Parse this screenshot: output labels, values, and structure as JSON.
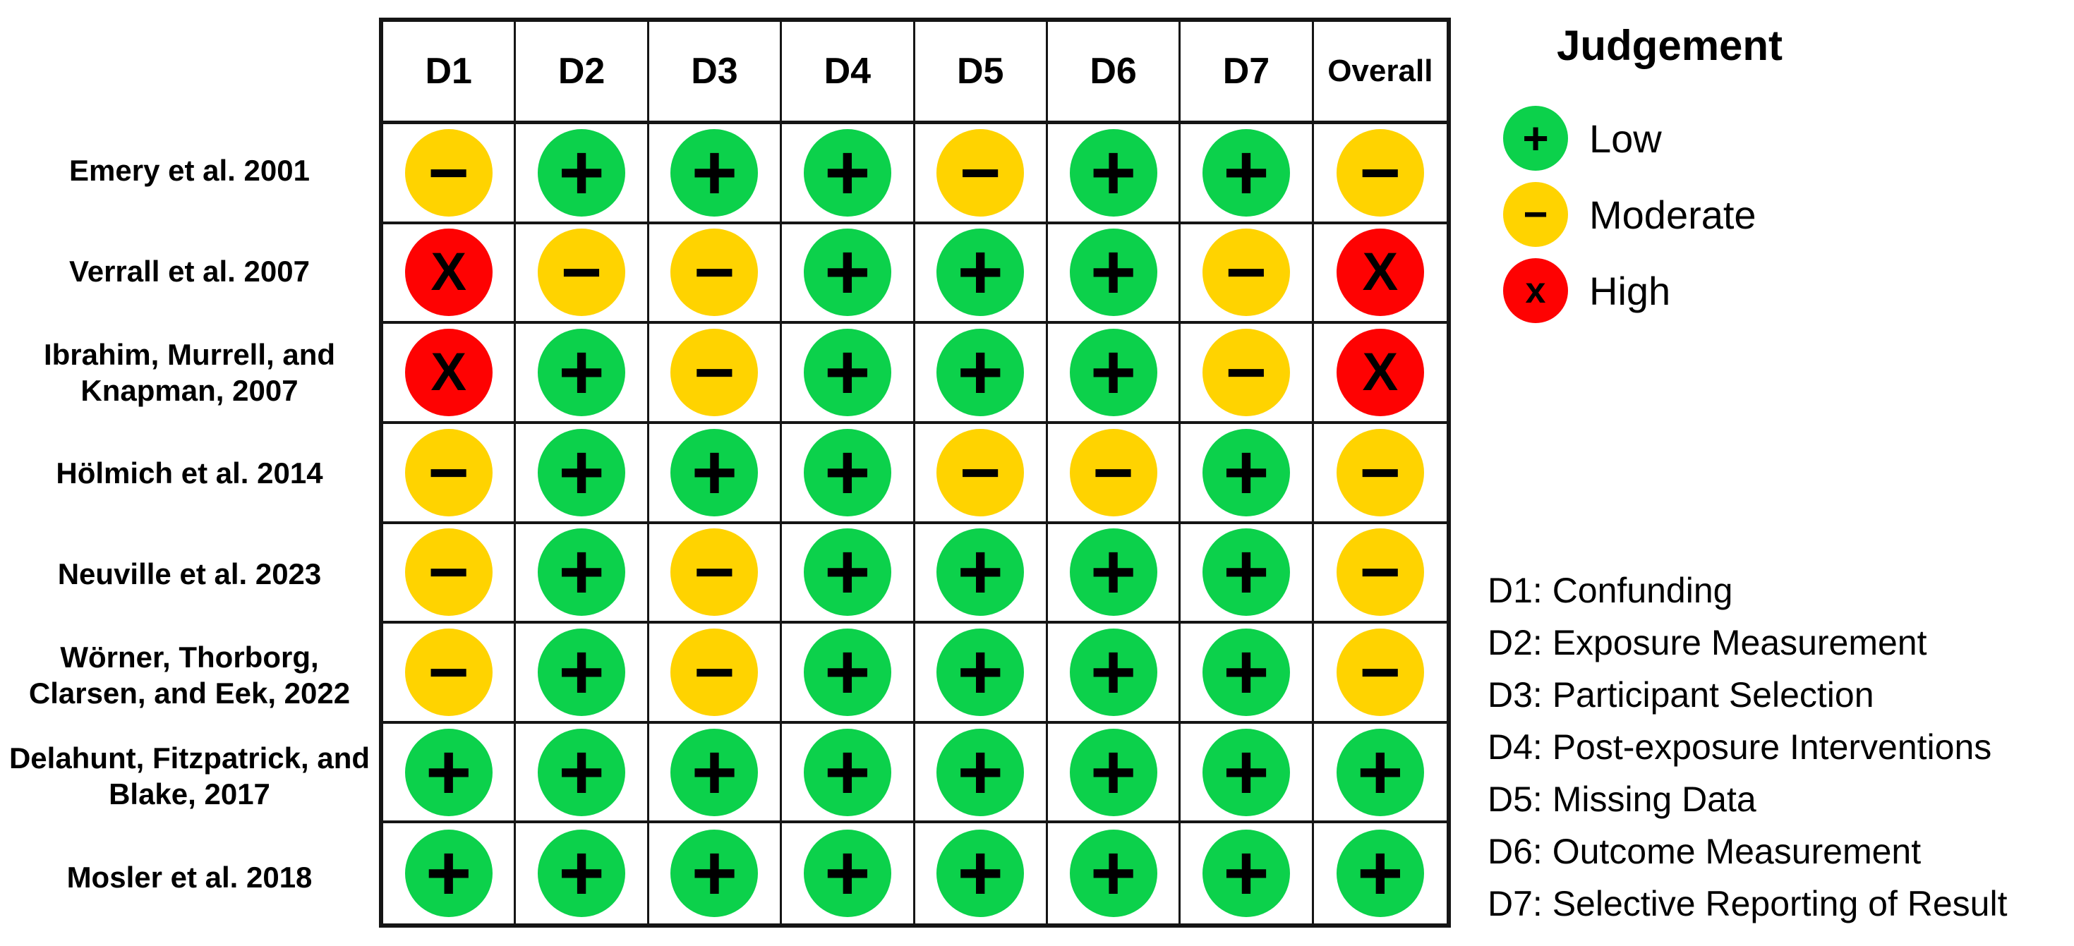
{
  "chart_data": {
    "type": "table",
    "columns": [
      "D1",
      "D2",
      "D3",
      "D4",
      "D5",
      "D6",
      "D7",
      "Overall"
    ],
    "rows": [
      {
        "study": "Emery et al. 2001",
        "judgements": [
          "Moderate",
          "Low",
          "Low",
          "Low",
          "Moderate",
          "Low",
          "Low",
          "Moderate"
        ]
      },
      {
        "study": "Verrall et al. 2007",
        "judgements": [
          "High",
          "Moderate",
          "Moderate",
          "Low",
          "Low",
          "Low",
          "Moderate",
          "High"
        ]
      },
      {
        "study": "Ibrahim, Murrell, and Knapman, 2007",
        "judgements": [
          "High",
          "Low",
          "Moderate",
          "Low",
          "Low",
          "Low",
          "Moderate",
          "High"
        ]
      },
      {
        "study": "Hölmich et al. 2014",
        "judgements": [
          "Moderate",
          "Low",
          "Low",
          "Low",
          "Moderate",
          "Moderate",
          "Low",
          "Moderate"
        ]
      },
      {
        "study": "Neuville et al. 2023",
        "judgements": [
          "Moderate",
          "Low",
          "Moderate",
          "Low",
          "Low",
          "Low",
          "Low",
          "Moderate"
        ]
      },
      {
        "study": "Wörner, Thorborg, Clarsen, and Eek, 2022",
        "judgements": [
          "Moderate",
          "Low",
          "Moderate",
          "Low",
          "Low",
          "Low",
          "Low",
          "Moderate"
        ]
      },
      {
        "study": "Delahunt, Fitzpatrick, and Blake, 2017",
        "judgements": [
          "Low",
          "Low",
          "Low",
          "Low",
          "Low",
          "Low",
          "Low",
          "Low"
        ]
      },
      {
        "study": "Mosler et al. 2018",
        "judgements": [
          "Low",
          "Low",
          "Low",
          "Low",
          "Low",
          "Low",
          "Low",
          "Low"
        ]
      }
    ],
    "legend": {
      "title": "Judgement",
      "entries": [
        {
          "label": "Low",
          "symbol": "+"
        },
        {
          "label": "Moderate",
          "symbol": "−"
        },
        {
          "label": "High",
          "symbol": "x"
        }
      ],
      "symbols": {
        "Low": "+",
        "Moderate": "−",
        "High": "X"
      }
    },
    "colors": {
      "Low": "#0cd14b",
      "Moderate": "#ffd300",
      "High": "#fe0202"
    },
    "domain_descriptions": [
      "D1: Confunding",
      "D2: Exposure Measurement",
      "D3: Participant Selection",
      "D4: Post-exposure Interventions",
      "D5: Missing Data",
      "D6: Outcome Measurement",
      "D7: Selective Reporting of Result"
    ]
  }
}
